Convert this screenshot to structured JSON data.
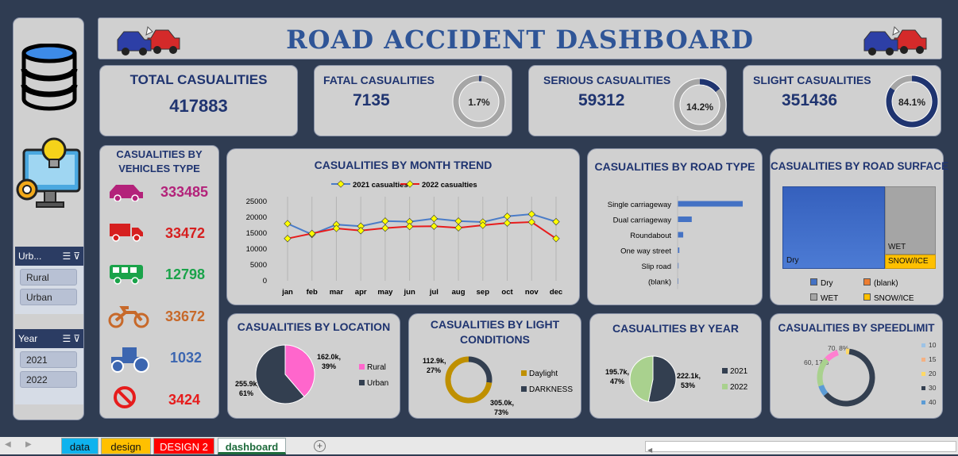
{
  "header": {
    "title": "ROAD ACCIDENT DASHBOARD"
  },
  "kpis": {
    "total": {
      "label": "TOTAL CASUALITIES",
      "value": "417883"
    },
    "fatal": {
      "label": "FATAL CASUALITIES",
      "value": "7135",
      "pct": "1.7%",
      "fraction": 0.017
    },
    "serious": {
      "label": "SERIOUS CASUALITIES",
      "value": "59312",
      "pct": "14.2%",
      "fraction": 0.142
    },
    "slight": {
      "label": "SLIGHT CASUALITIES",
      "value": "351436",
      "pct": "84.1%",
      "fraction": 0.841
    }
  },
  "vehicles": {
    "title_line1": "CASUALITIES BY",
    "title_line2": "VEHICLES TYPE",
    "items": [
      {
        "icon": "car-icon",
        "value": "333485",
        "color": "#b3227a"
      },
      {
        "icon": "truck-icon",
        "value": "33472",
        "color": "#d61f1f"
      },
      {
        "icon": "bus-icon",
        "value": "12798",
        "color": "#1aa34a"
      },
      {
        "icon": "motorcycle-icon",
        "value": "33672",
        "color": "#c7692a"
      },
      {
        "icon": "tractor-icon",
        "value": "1032",
        "color": "#3c66b0"
      },
      {
        "icon": "no-entry-icon",
        "value": "3424",
        "color": "#e61c1c"
      }
    ]
  },
  "slicers": {
    "urban": {
      "title": "Urb...",
      "items": [
        "Rural",
        "Urban"
      ]
    },
    "year": {
      "title": "Year",
      "items": [
        "2021",
        "2022"
      ]
    }
  },
  "month_trend": {
    "title": "CASUALITIES BY MONTH TREND"
  },
  "road_type": {
    "title": "CASUALITIES BY ROAD TYPE"
  },
  "road_surface": {
    "title": "CASUALITIES BY ROAD SURFACE",
    "box_labels": [
      "Dry",
      "WET",
      "SNOW/ICE"
    ],
    "legend": [
      "Dry",
      "(blank)",
      "WET",
      "SNOW/ICE"
    ]
  },
  "location": {
    "title": "CASUALITIES BY LOCATION",
    "label_rural_1": "162.0k,",
    "label_rural_2": "39%",
    "label_urban_1": "255.9k,",
    "label_urban_2": "61%",
    "legend": [
      "Rural",
      "Urban"
    ]
  },
  "light": {
    "title_line1": "CASUALITIES BY LIGHT",
    "title_line2": "CONDITIONS",
    "label_dark_1": "112.9k,",
    "label_dark_2": "27%",
    "label_day_1": "305.0k,",
    "label_day_2": "73%",
    "legend": [
      "Daylight",
      "DARKNESS"
    ]
  },
  "year": {
    "title": "CASUALITIES BY YEAR",
    "label_2021_1": "195.7k,",
    "label_2021_2": "47%",
    "label_2022_1": "222.1k,",
    "label_2022_2": "53%",
    "legend": [
      "2021",
      "2022"
    ]
  },
  "speed": {
    "title": "CASUALITIES BY SPEEDLIMIT",
    "label_60": "60, 17%",
    "label_70": "70, 8%",
    "legend": [
      "10",
      "15",
      "20",
      "30",
      "40"
    ]
  },
  "sheet_tabs": [
    "data",
    "design",
    "DESIGN 2",
    "dashboard"
  ],
  "colors": {
    "navy": "#1f3470",
    "dry": "#4472c4",
    "wet": "#a5a5a5",
    "snow": "#ffc000",
    "rural": "#ff66cc",
    "urban": "#333f50",
    "daylight": "#bf9000",
    "darkness": "#333f50",
    "y2021": "#333f50",
    "y2022": "#a9d18e",
    "line2021": "#4a7cc8",
    "line2022": "#e81c1c"
  },
  "chart_data": [
    {
      "type": "line",
      "title": "CASUALITIES BY MONTH TREND",
      "categories": [
        "jan",
        "feb",
        "mar",
        "apr",
        "may",
        "jun",
        "jul",
        "aug",
        "sep",
        "oct",
        "nov",
        "dec"
      ],
      "series": [
        {
          "name": "2021 casualties",
          "values": [
            18000,
            14600,
            17700,
            17200,
            18800,
            18600,
            19600,
            18800,
            18500,
            20300,
            21000,
            18600
          ]
        },
        {
          "name": "2022  casualties",
          "values": [
            13300,
            14900,
            16500,
            15800,
            16600,
            17100,
            17200,
            16700,
            17500,
            18200,
            18500,
            13300
          ]
        }
      ],
      "ylim": [
        0,
        25000
      ],
      "yticks": [
        0,
        5000,
        10000,
        15000,
        20000,
        25000
      ],
      "legend": "top"
    },
    {
      "type": "bar",
      "title": "CASUALITIES BY ROAD TYPE",
      "categories": [
        "Single carriageway",
        "Dual carriageway",
        "Roundabout",
        "One way street",
        "Slip road",
        "(blank)"
      ],
      "values": [
        309700,
        67300,
        26700,
        8300,
        4400,
        1200
      ]
    },
    {
      "type": "heatmap",
      "title": "CASUALITIES BY ROAD SURFACE",
      "categories": [
        "Dry",
        "(blank)",
        "WET",
        "SNOW/ICE"
      ],
      "values": [
        291100,
        2500,
        102600,
        21700
      ]
    },
    {
      "type": "pie",
      "title": "CASUALITIES BY LOCATION",
      "categories": [
        "Rural",
        "Urban"
      ],
      "values": [
        162000,
        255900
      ],
      "percent": [
        39,
        61
      ]
    },
    {
      "type": "pie",
      "title": "CASUALITIES BY LIGHT CONDITIONS",
      "categories": [
        "Daylight",
        "DARKNESS"
      ],
      "values": [
        305000,
        112900
      ],
      "percent": [
        73,
        27
      ]
    },
    {
      "type": "pie",
      "title": "CASUALITIES BY YEAR",
      "categories": [
        "2021",
        "2022"
      ],
      "values": [
        195700,
        222100
      ],
      "percent": [
        47,
        53
      ]
    },
    {
      "type": "pie",
      "title": "CASUALITIES BY SPEEDLIMIT",
      "categories": [
        "10",
        "15",
        "20",
        "30",
        "40",
        "60",
        "70"
      ],
      "percent": [
        0,
        0,
        2,
        62,
        6,
        17,
        8
      ]
    }
  ]
}
